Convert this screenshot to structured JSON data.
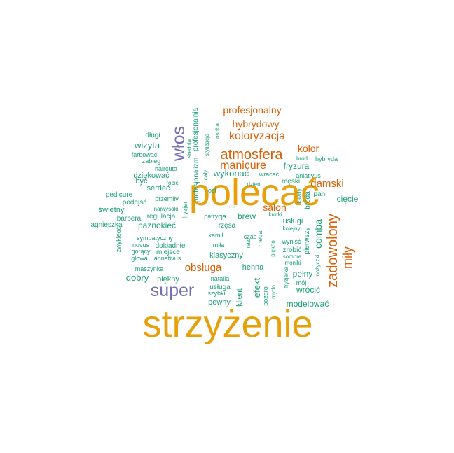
{
  "palette": {
    "gold": "#E6A00A",
    "purple": "#7570B3",
    "orange": "#D95F02",
    "green": "#1B9E77",
    "faint": "#DDDDDD"
  },
  "words": [
    {
      "text": "strzyżenie",
      "color": "gold"
    },
    {
      "text": "polecać",
      "color": "gold"
    },
    {
      "text": "super",
      "color": "purple"
    },
    {
      "text": "włos",
      "color": "purple"
    },
    {
      "text": "atmosfera",
      "color": "orange"
    },
    {
      "text": "zadowolony",
      "color": "orange"
    },
    {
      "text": "miły",
      "color": "orange"
    },
    {
      "text": "koloryzacja",
      "color": "orange"
    },
    {
      "text": "manicure",
      "color": "orange"
    },
    {
      "text": "hybrydowy",
      "color": "orange"
    },
    {
      "text": "profesjonalny",
      "color": "orange"
    },
    {
      "text": "obsługa",
      "color": "orange"
    },
    {
      "text": "damski",
      "color": "orange"
    },
    {
      "text": "kolor",
      "color": "orange"
    },
    {
      "text": "salon",
      "color": "orange"
    },
    {
      "text": "wizyta",
      "color": "green"
    },
    {
      "text": "wykonać",
      "color": "green"
    },
    {
      "text": "fryzura",
      "color": "green"
    },
    {
      "text": "paznokieć",
      "color": "green"
    },
    {
      "text": "comba",
      "color": "green"
    },
    {
      "text": "dobry",
      "color": "green"
    },
    {
      "text": "efekt",
      "color": "green"
    },
    {
      "text": "brew",
      "color": "green"
    },
    {
      "text": "klasyczny",
      "color": "green"
    },
    {
      "text": "świetny",
      "color": "green"
    },
    {
      "text": "cięcie",
      "color": "green"
    },
    {
      "text": "pełny",
      "color": "green"
    },
    {
      "text": "wrócić",
      "color": "green"
    },
    {
      "text": "modelować",
      "color": "green"
    },
    {
      "text": "henna",
      "color": "green"
    },
    {
      "text": "usługa",
      "color": "green"
    },
    {
      "text": "pewny",
      "color": "green"
    },
    {
      "text": "piękny",
      "color": "green"
    },
    {
      "text": "rzęsa",
      "color": "green"
    },
    {
      "text": "usługi",
      "color": "green"
    },
    {
      "text": "serdeć",
      "color": "green"
    },
    {
      "text": "dziękować",
      "color": "green"
    },
    {
      "text": "być",
      "color": "green"
    },
    {
      "text": "długi",
      "color": "green"
    },
    {
      "text": "podejść",
      "color": "green"
    },
    {
      "text": "pedicure",
      "color": "green"
    },
    {
      "text": "regulacja",
      "color": "green"
    },
    {
      "text": "barbera",
      "color": "green"
    },
    {
      "text": "agnieszka",
      "color": "green"
    },
    {
      "text": "dokładnie",
      "color": "green"
    },
    {
      "text": "miejsce",
      "color": "green"
    },
    {
      "text": "zabieg",
      "color": "green"
    },
    {
      "text": "farbować",
      "color": "green"
    },
    {
      "text": "haircuta",
      "color": "green"
    },
    {
      "text": "robić",
      "color": "green"
    },
    {
      "text": "przemiły",
      "color": "green"
    },
    {
      "text": "najwysoki",
      "color": "green"
    },
    {
      "text": "sympatyczny",
      "color": "green"
    },
    {
      "text": "novus",
      "color": "green"
    },
    {
      "text": "gorący",
      "color": "green"
    },
    {
      "text": "głowa",
      "color": "green"
    },
    {
      "text": "annativus",
      "color": "green"
    },
    {
      "text": "maszynka",
      "color": "green"
    },
    {
      "text": "natalia",
      "color": "green"
    },
    {
      "text": "szybki",
      "color": "green"
    },
    {
      "text": "klient",
      "color": "green"
    },
    {
      "text": "pozdro",
      "color": "green"
    },
    {
      "text": "mydo",
      "color": "green"
    },
    {
      "text": "fryzjerka",
      "color": "green"
    },
    {
      "text": "mój",
      "color": "green"
    },
    {
      "text": "nożyczki",
      "color": "green"
    },
    {
      "text": "pierwszy",
      "color": "green"
    },
    {
      "text": "zrobić",
      "color": "green"
    },
    {
      "text": "wyniść",
      "color": "green"
    },
    {
      "text": "sombre",
      "color": "green"
    },
    {
      "text": "moniki",
      "color": "green"
    },
    {
      "text": "piękno",
      "color": "green"
    },
    {
      "text": "mega",
      "color": "green"
    },
    {
      "text": "raz",
      "color": "green"
    },
    {
      "text": "czas",
      "color": "green"
    },
    {
      "text": "miła",
      "color": "green"
    },
    {
      "text": "kamil",
      "color": "green"
    },
    {
      "text": "patrycja",
      "color": "green"
    },
    {
      "text": "krótki",
      "color": "green"
    },
    {
      "text": "kolejny",
      "color": "green"
    },
    {
      "text": "męski",
      "color": "green"
    },
    {
      "text": "wracać",
      "color": "green"
    },
    {
      "text": "dzień",
      "color": "green"
    },
    {
      "text": "aniativus",
      "color": "green"
    },
    {
      "text": "bród",
      "color": "green"
    },
    {
      "text": "hybryda",
      "color": "green"
    },
    {
      "text": "broda",
      "color": "green"
    },
    {
      "text": "każdy",
      "color": "green"
    },
    {
      "text": "pani",
      "color": "green"
    },
    {
      "text": "oct",
      "color": "green"
    },
    {
      "text": "cały",
      "color": "green"
    },
    {
      "text": "osoba",
      "color": "green"
    },
    {
      "text": "stylizacja",
      "color": "green"
    },
    {
      "text": "średnia",
      "color": "green"
    },
    {
      "text": "profesjonalnia",
      "color": "green"
    },
    {
      "text": "profesjonalizm",
      "color": "green"
    },
    {
      "text": "fryzjer",
      "color": "green"
    },
    {
      "text": "zwykleoć",
      "color": "green"
    },
    {
      "text": "lód",
      "color": "faint"
    }
  ]
}
